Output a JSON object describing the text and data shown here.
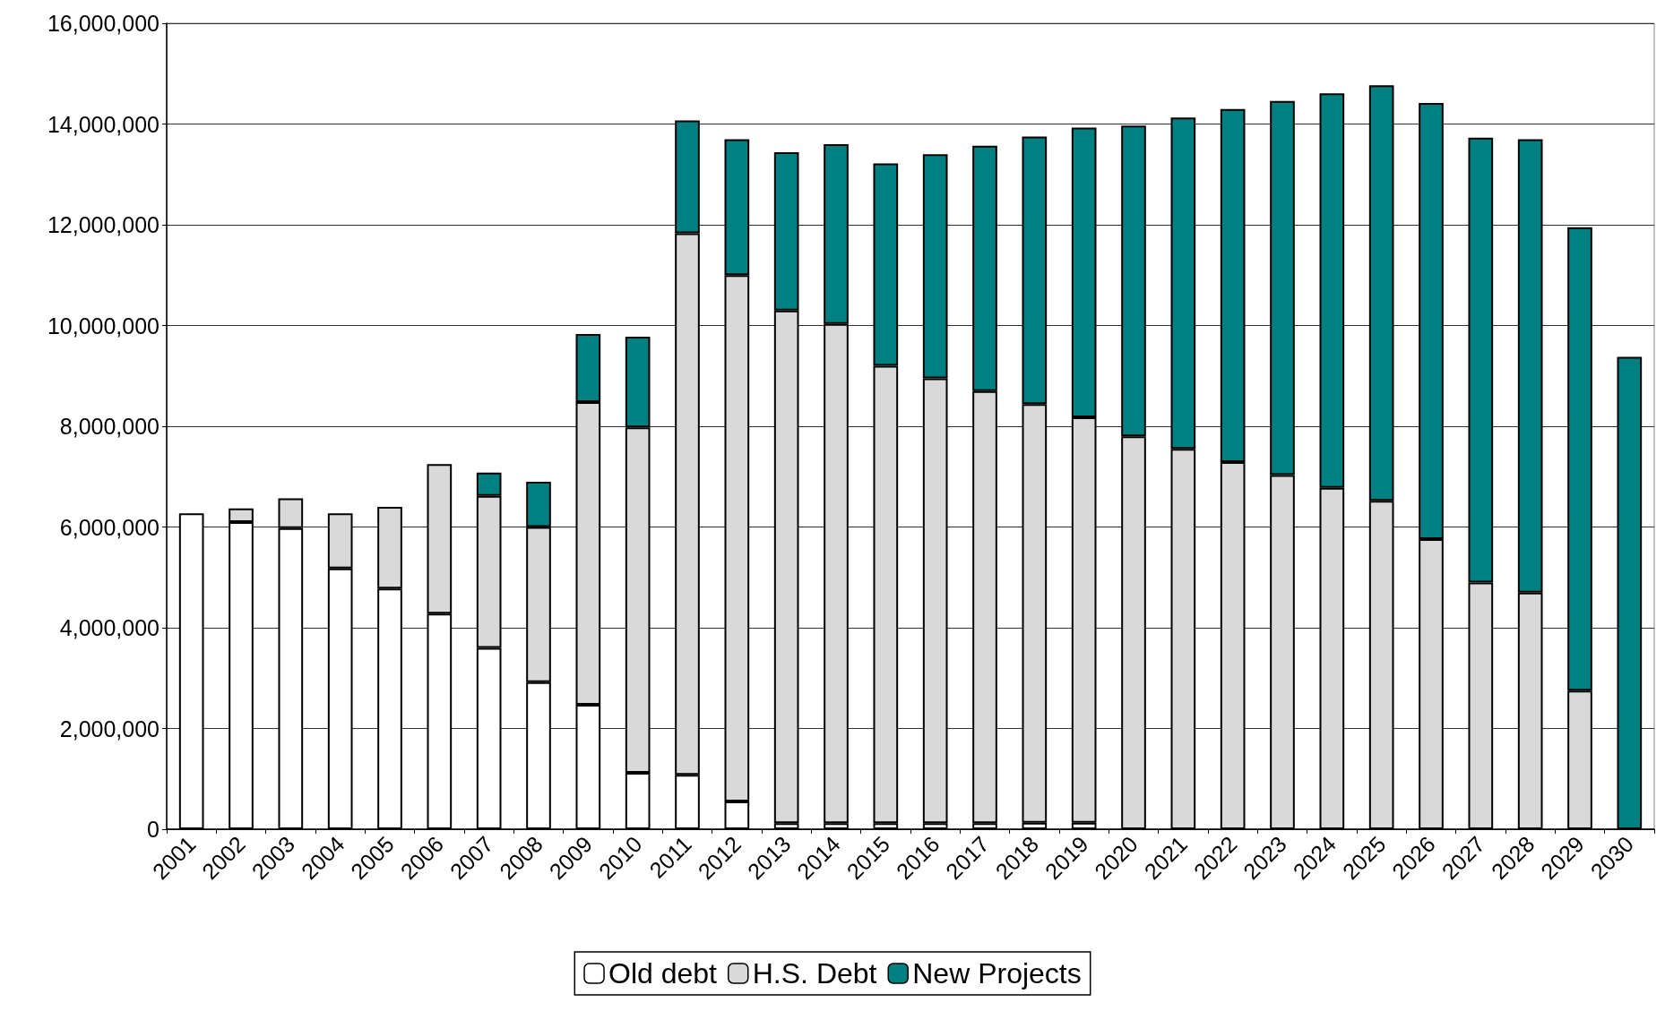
{
  "chart_data": {
    "type": "bar",
    "stacked": true,
    "categories": [
      "2001",
      "2002",
      "2003",
      "2004",
      "2005",
      "2006",
      "2007",
      "2008",
      "2009",
      "2010",
      "2011",
      "2012",
      "2013",
      "2014",
      "2015",
      "2016",
      "2017",
      "2018",
      "2019",
      "2020",
      "2021",
      "2022",
      "2023",
      "2024",
      "2025",
      "2026",
      "2027",
      "2028",
      "2029",
      "2030"
    ],
    "series": [
      {
        "name": "Old debt",
        "color": "#ffffff",
        "values": [
          6270000,
          6100000,
          5980000,
          5180000,
          4780000,
          4280000,
          3600000,
          2920000,
          2470000,
          1120000,
          1080000,
          550000,
          120000,
          120000,
          120000,
          120000,
          120000,
          130000,
          130000,
          0,
          0,
          0,
          0,
          0,
          0,
          0,
          0,
          0,
          0,
          0
        ]
      },
      {
        "name": "H.S. Debt",
        "color": "#d9d9d9",
        "values": [
          0,
          270000,
          590000,
          1090000,
          1620000,
          2970000,
          3020000,
          3080000,
          6010000,
          6860000,
          10750000,
          10450000,
          10180000,
          9910000,
          9080000,
          8830000,
          8580000,
          8310000,
          8050000,
          7800000,
          7550000,
          7290000,
          7030000,
          6780000,
          6520000,
          5760000,
          4900000,
          4700000,
          2750000,
          0
        ]
      },
      {
        "name": "New Projects",
        "color": "#008080",
        "values": [
          0,
          0,
          0,
          0,
          0,
          0,
          460000,
          900000,
          1350000,
          1800000,
          2240000,
          2700000,
          3140000,
          3570000,
          4020000,
          4450000,
          4870000,
          5310000,
          5750000,
          6170000,
          6580000,
          7010000,
          7430000,
          7830000,
          8250000,
          8660000,
          8830000,
          9000000,
          9200000,
          9380000
        ]
      }
    ],
    "ylim": [
      0,
      16000000
    ],
    "yticks": [
      0,
      {
        "value": 2000000,
        "label": "2,000,000"
      },
      {
        "value": 4000000,
        "label": "4,000,000"
      },
      {
        "value": 6000000,
        "label": "6,000,000"
      },
      {
        "value": 8000000,
        "label": "8,000,000"
      },
      {
        "value": 10000000,
        "label": "10,000,000"
      },
      {
        "value": 12000000,
        "label": "12,000,000"
      },
      {
        "value": 14000000,
        "label": "14,000,000"
      },
      {
        "value": 16000000,
        "label": "16,000,000"
      }
    ],
    "grid": "y",
    "legend": "bottom"
  }
}
